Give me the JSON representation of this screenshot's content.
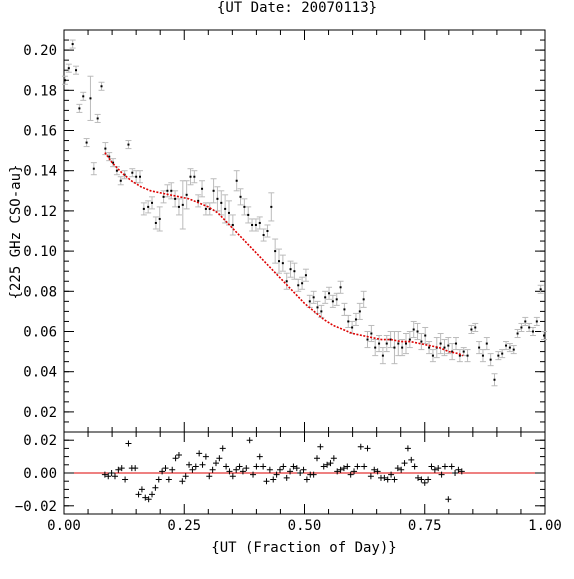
{
  "chart_data": [
    {
      "type": "scatter",
      "title": "{UT Date: 20070113}",
      "xlabel": "",
      "ylabel": "{225 GHz CSO-au}",
      "xlim": [
        0.0,
        1.0
      ],
      "ylim": [
        0.01,
        0.21
      ],
      "yticks": [
        "0.02",
        "0.04",
        "0.06",
        "0.08",
        "0.10",
        "0.12",
        "0.14",
        "0.16",
        "0.18",
        "0.20"
      ],
      "grid": false,
      "series": [
        {
          "kind": "points-with-errorbars",
          "color": "#000000",
          "errorbar_color": "#bbbbbb",
          "x": [
            0.002,
            0.01,
            0.018,
            0.025,
            0.032,
            0.04,
            0.047,
            0.055,
            0.062,
            0.07,
            0.078,
            0.086,
            0.094,
            0.102,
            0.11,
            0.118,
            0.126,
            0.134,
            0.142,
            0.15,
            0.158,
            0.166,
            0.175,
            0.183,
            0.191,
            0.199,
            0.207,
            0.215,
            0.223,
            0.231,
            0.239,
            0.247,
            0.255,
            0.263,
            0.271,
            0.279,
            0.287,
            0.295,
            0.303,
            0.311,
            0.319,
            0.327,
            0.335,
            0.343,
            0.351,
            0.359,
            0.367,
            0.375,
            0.383,
            0.391,
            0.399,
            0.407,
            0.415,
            0.423,
            0.431,
            0.439,
            0.447,
            0.455,
            0.463,
            0.471,
            0.479,
            0.487,
            0.495,
            0.503,
            0.511,
            0.519,
            0.527,
            0.535,
            0.543,
            0.551,
            0.559,
            0.567,
            0.575,
            0.583,
            0.591,
            0.599,
            0.607,
            0.615,
            0.623,
            0.631,
            0.639,
            0.647,
            0.655,
            0.663,
            0.671,
            0.679,
            0.687,
            0.695,
            0.703,
            0.711,
            0.719,
            0.727,
            0.735,
            0.743,
            0.751,
            0.759,
            0.767,
            0.775,
            0.783,
            0.791,
            0.799,
            0.807,
            0.815,
            0.823,
            0.831,
            0.839,
            0.847,
            0.855,
            0.863,
            0.871,
            0.879,
            0.887,
            0.895,
            0.903,
            0.911,
            0.919,
            0.927,
            0.935,
            0.943,
            0.951,
            0.959,
            0.967,
            0.975,
            0.983,
            0.991,
            0.998
          ],
          "y": [
            0.185,
            0.191,
            0.203,
            0.19,
            0.171,
            0.177,
            0.154,
            0.176,
            0.141,
            0.166,
            0.182,
            0.151,
            0.147,
            0.144,
            0.14,
            0.135,
            0.138,
            0.153,
            0.139,
            0.137,
            0.137,
            0.121,
            0.122,
            0.124,
            0.114,
            0.116,
            0.127,
            0.13,
            0.13,
            0.126,
            0.122,
            0.123,
            0.128,
            0.137,
            0.137,
            0.125,
            0.131,
            0.121,
            0.121,
            0.13,
            0.126,
            0.124,
            0.121,
            0.119,
            0.113,
            0.135,
            0.127,
            0.122,
            0.118,
            0.113,
            0.113,
            0.114,
            0.108,
            0.11,
            0.122,
            0.1,
            0.095,
            0.094,
            0.085,
            0.091,
            0.09,
            0.083,
            0.084,
            0.088,
            0.075,
            0.077,
            0.072,
            0.07,
            0.077,
            0.079,
            0.075,
            0.076,
            0.082,
            0.071,
            0.065,
            0.062,
            0.066,
            0.07,
            0.076,
            0.056,
            0.059,
            0.052,
            0.054,
            0.048,
            0.054,
            0.056,
            0.052,
            0.054,
            0.052,
            0.054,
            0.056,
            0.061,
            0.06,
            0.055,
            0.058,
            0.052,
            0.048,
            0.052,
            0.054,
            0.052,
            0.053,
            0.05,
            0.054,
            0.048,
            0.05,
            0.048,
            0.061,
            0.062,
            0.052,
            0.048,
            0.054,
            0.046,
            0.036,
            0.048,
            0.049,
            0.053,
            0.052,
            0.051,
            0.059,
            0.062,
            0.065,
            0.062,
            0.06,
            0.065,
            0.081,
            0.058
          ],
          "yerr": [
            0.002,
            0.002,
            0.002,
            0.002,
            0.002,
            0.002,
            0.002,
            0.011,
            0.003,
            0.002,
            0.002,
            0.003,
            0.002,
            0.002,
            0.002,
            0.002,
            0.002,
            0.002,
            0.002,
            0.003,
            0.003,
            0.003,
            0.003,
            0.003,
            0.003,
            0.006,
            0.003,
            0.003,
            0.004,
            0.004,
            0.004,
            0.012,
            0.007,
            0.004,
            0.003,
            0.003,
            0.004,
            0.003,
            0.003,
            0.006,
            0.006,
            0.006,
            0.007,
            0.006,
            0.005,
            0.005,
            0.004,
            0.004,
            0.004,
            0.003,
            0.003,
            0.003,
            0.003,
            0.003,
            0.007,
            0.006,
            0.006,
            0.004,
            0.004,
            0.004,
            0.004,
            0.003,
            0.003,
            0.003,
            0.003,
            0.003,
            0.003,
            0.003,
            0.003,
            0.003,
            0.003,
            0.003,
            0.003,
            0.003,
            0.003,
            0.003,
            0.003,
            0.004,
            0.004,
            0.004,
            0.004,
            0.004,
            0.004,
            0.004,
            0.004,
            0.004,
            0.008,
            0.006,
            0.004,
            0.005,
            0.004,
            0.004,
            0.004,
            0.004,
            0.004,
            0.003,
            0.003,
            0.005,
            0.005,
            0.004,
            0.004,
            0.004,
            0.003,
            0.003,
            0.002,
            0.003,
            0.002,
            0.002,
            0.003,
            0.003,
            0.003,
            0.003,
            0.003,
            0.002,
            0.002,
            0.002,
            0.002,
            0.002,
            0.002,
            0.002,
            0.002,
            0.002,
            0.002,
            0.002,
            0.002,
            0.002
          ]
        },
        {
          "kind": "fit-line",
          "color": "#dd0000",
          "x": [
            0.085,
            0.1,
            0.12,
            0.14,
            0.16,
            0.18,
            0.2,
            0.22,
            0.24,
            0.26,
            0.28,
            0.3,
            0.32,
            0.34,
            0.36,
            0.38,
            0.4,
            0.42,
            0.44,
            0.46,
            0.48,
            0.5,
            0.52,
            0.54,
            0.56,
            0.58,
            0.6,
            0.62,
            0.64,
            0.66,
            0.68,
            0.7,
            0.72,
            0.74,
            0.76,
            0.78,
            0.8,
            0.82,
            0.83
          ],
          "y": [
            0.149,
            0.144,
            0.139,
            0.135,
            0.132,
            0.13,
            0.129,
            0.128,
            0.127,
            0.126,
            0.124,
            0.122,
            0.119,
            0.114,
            0.109,
            0.104,
            0.099,
            0.094,
            0.089,
            0.084,
            0.079,
            0.074,
            0.07,
            0.066,
            0.063,
            0.061,
            0.059,
            0.058,
            0.057,
            0.056,
            0.056,
            0.055,
            0.055,
            0.054,
            0.053,
            0.052,
            0.05,
            0.049,
            0.048
          ]
        }
      ]
    },
    {
      "type": "scatter",
      "title": "",
      "xlabel": "{UT (Fraction of Day)}",
      "ylabel": "",
      "xlim": [
        0.0,
        1.0
      ],
      "ylim": [
        -0.025,
        0.025
      ],
      "xticks": [
        "0.00",
        "0.25",
        "0.50",
        "0.75",
        "1.00"
      ],
      "yticks": [
        "−0.02",
        "0.00",
        "0.02"
      ],
      "grid": false,
      "zero_line_color": "#dd0000",
      "series": [
        {
          "kind": "residual-crosses",
          "color": "#000000",
          "x": [
            0.085,
            0.092,
            0.099,
            0.106,
            0.113,
            0.12,
            0.127,
            0.134,
            0.141,
            0.148,
            0.155,
            0.162,
            0.169,
            0.176,
            0.183,
            0.19,
            0.197,
            0.204,
            0.211,
            0.218,
            0.225,
            0.232,
            0.239,
            0.246,
            0.253,
            0.26,
            0.267,
            0.274,
            0.281,
            0.288,
            0.295,
            0.302,
            0.309,
            0.316,
            0.323,
            0.33,
            0.337,
            0.344,
            0.351,
            0.358,
            0.365,
            0.372,
            0.379,
            0.386,
            0.393,
            0.4,
            0.407,
            0.414,
            0.421,
            0.428,
            0.435,
            0.442,
            0.449,
            0.456,
            0.463,
            0.47,
            0.477,
            0.484,
            0.491,
            0.498,
            0.505,
            0.512,
            0.519,
            0.526,
            0.533,
            0.54,
            0.547,
            0.554,
            0.561,
            0.568,
            0.575,
            0.582,
            0.589,
            0.596,
            0.603,
            0.61,
            0.617,
            0.624,
            0.631,
            0.638,
            0.645,
            0.652,
            0.659,
            0.666,
            0.673,
            0.68,
            0.687,
            0.694,
            0.701,
            0.708,
            0.715,
            0.722,
            0.729,
            0.736,
            0.743,
            0.75,
            0.757,
            0.764,
            0.771,
            0.778,
            0.785,
            0.792,
            0.799,
            0.806,
            0.813,
            0.82,
            0.827
          ],
          "y": [
            -0.001,
            -0.002,
            0.0,
            -0.002,
            0.002,
            0.003,
            -0.004,
            0.018,
            0.003,
            0.003,
            -0.013,
            -0.01,
            -0.015,
            -0.016,
            -0.013,
            -0.009,
            -0.004,
            0.001,
            0.003,
            -0.004,
            0.002,
            0.009,
            0.011,
            -0.005,
            -0.002,
            0.005,
            0.002,
            0.004,
            0.012,
            0.005,
            0.01,
            -0.002,
            0.002,
            0.006,
            0.009,
            0.015,
            0.004,
            0.001,
            -0.002,
            0.002,
            0.004,
            0.001,
            0.003,
            0.02,
            -0.001,
            0.004,
            0.01,
            0.004,
            -0.005,
            0.002,
            -0.004,
            -0.001,
            0.002,
            0.004,
            -0.003,
            0.001,
            0.004,
            0.003,
            0.0,
            0.002,
            -0.004,
            -0.001,
            -0.001,
            0.009,
            0.016,
            0.004,
            0.005,
            0.006,
            0.009,
            0.001,
            0.002,
            0.003,
            0.004,
            -0.001,
            0.001,
            0.004,
            0.016,
            0.004,
            0.015,
            -0.002,
            0.002,
            0.001,
            -0.003,
            -0.003,
            -0.004,
            -0.001,
            -0.004,
            0.003,
            0.002,
            0.006,
            0.015,
            0.008,
            0.004,
            -0.003,
            -0.004,
            -0.006,
            -0.004,
            0.004,
            0.002,
            0.003,
            -0.001,
            0.004,
            -0.016,
            0.004,
            0.0,
            0.002,
            0.001
          ]
        }
      ]
    }
  ]
}
